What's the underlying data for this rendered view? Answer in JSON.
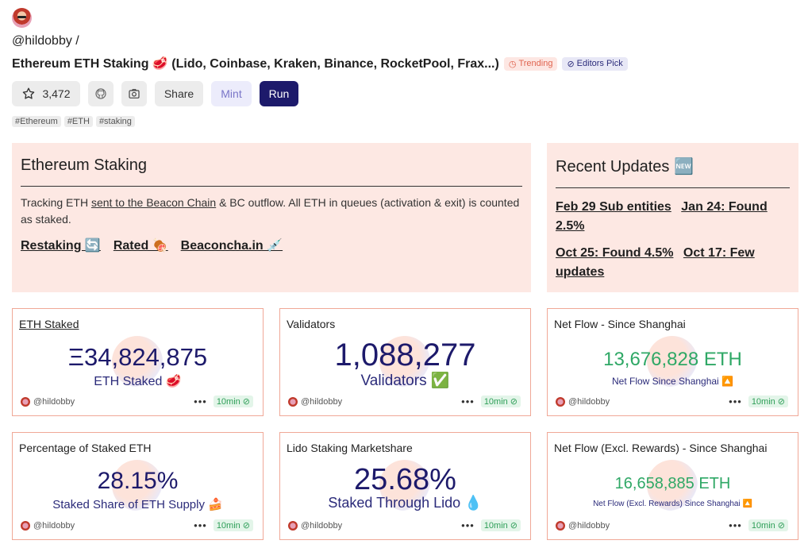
{
  "header": {
    "author": "@hildobby /",
    "title": "Ethereum ETH Staking 🥩 (Lido, Coinbase, Kraken, Binance, RocketPool, Frax...)",
    "trending_label": "Trending",
    "editors_label": "Editors Pick"
  },
  "toolbar": {
    "star_count": "3,472",
    "share_label": "Share",
    "mint_label": "Mint",
    "run_label": "Run"
  },
  "tags": [
    "#Ethereum",
    "#ETH",
    "#staking"
  ],
  "intro": {
    "title": "Ethereum Staking",
    "text_before": "Tracking ETH ",
    "link_text": "sent to the Beacon Chain",
    "text_after": " & BC outflow. All ETH in queues (activation & exit) is counted as staked.",
    "links": [
      "Restaking 🔄",
      "Rated 🍖",
      "Beaconcha.in 💉"
    ]
  },
  "updates": {
    "title": "Recent Updates 🆕",
    "items": [
      "Feb 29 Sub entities",
      "Jan 24: Found 2.5%",
      "Oct 25: Found 4.5%",
      "Oct 17: Few updates"
    ]
  },
  "cards": [
    {
      "title": "ETH Staked",
      "value": "Ξ34,824,875",
      "subtitle": "ETH Staked 🥩",
      "author": "@hildobby",
      "time": "10min"
    },
    {
      "title": "Validators",
      "value": "1,088,277",
      "subtitle": "Validators ✅",
      "author": "@hildobby",
      "time": "10min"
    },
    {
      "title": "Net Flow - Since Shanghai",
      "value": "13,676,828 ETH",
      "subtitle": "Net Flow Since Shanghai 🔼",
      "author": "@hildobby",
      "time": "10min"
    },
    {
      "title": "Percentage of Staked ETH",
      "value": "28.15%",
      "subtitle": "Staked Share of ETH Supply 🍰",
      "author": "@hildobby",
      "time": "10min"
    },
    {
      "title": "Lido Staking Marketshare",
      "value": "25.68%",
      "subtitle": "Staked Through Lido 💧",
      "author": "@hildobby",
      "time": "10min"
    },
    {
      "title": "Net Flow (Excl. Rewards) - Since Shanghai",
      "value": "16,658,885 ETH",
      "subtitle": "Net Flow (Excl. Rewards) Since Shanghai 🔼",
      "author": "@hildobby",
      "time": "10min"
    }
  ],
  "colors": {
    "accent": "#1d1a6b",
    "panel": "#fde8e3",
    "positive": "#2fa866"
  }
}
